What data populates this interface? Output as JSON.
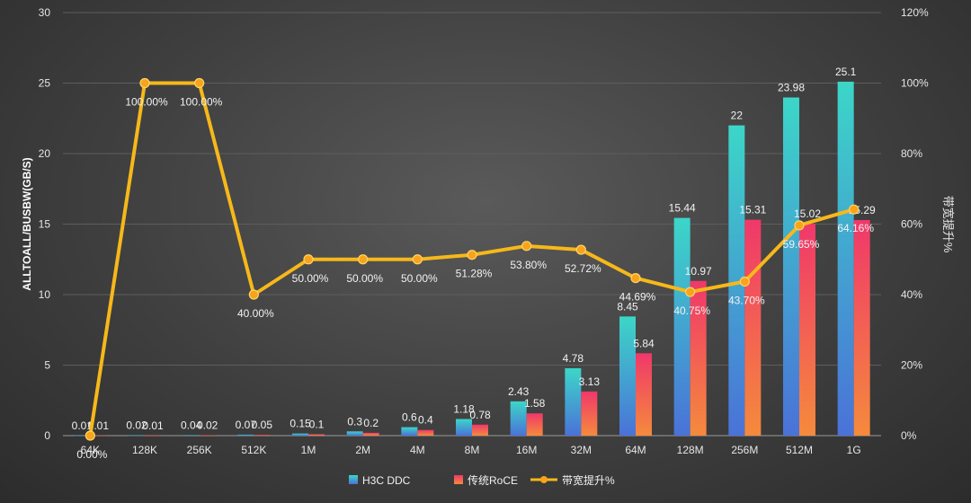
{
  "chart_data": {
    "type": "bar",
    "categories": [
      "64K",
      "128K",
      "256K",
      "512K",
      "1M",
      "2M",
      "4M",
      "8M",
      "16M",
      "32M",
      "64M",
      "128M",
      "256M",
      "512M",
      "1G"
    ],
    "series": [
      {
        "name": "H3C DDC",
        "type": "bar",
        "axis": "left",
        "values": [
          0.01,
          0.02,
          0.04,
          0.07,
          0.15,
          0.3,
          0.6,
          1.18,
          2.43,
          4.78,
          8.45,
          15.44,
          22,
          23.98,
          25.1
        ],
        "labels": [
          "0.01",
          "0.02",
          "0.04",
          "0.07",
          "0.15",
          "0.3",
          "0.6",
          "1.18",
          "2.43",
          "4.78",
          "8.45",
          "15.44",
          "22",
          "23.98",
          "25.1"
        ],
        "color_top": "#3cd6c8",
        "color_bottom": "#4a72d8"
      },
      {
        "name": "传统RoCE",
        "type": "bar",
        "axis": "left",
        "values": [
          0.01,
          0.01,
          0.02,
          0.05,
          0.1,
          0.2,
          0.4,
          0.78,
          1.58,
          3.13,
          5.84,
          10.97,
          15.31,
          15.02,
          15.29
        ],
        "labels": [
          "0.01",
          "0.01",
          "0.02",
          "0.05",
          "0.1",
          "0.2",
          "0.4",
          "0.78",
          "1.58",
          "3.13",
          "5.84",
          "10.97",
          "15.31",
          "15.02",
          "15.29"
        ],
        "color_top": "#f0386a",
        "color_bottom": "#f58a3c"
      },
      {
        "name": "带宽提升%",
        "type": "line",
        "axis": "right",
        "values": [
          0,
          100,
          100,
          40,
          50,
          50,
          50,
          51.28,
          53.8,
          52.72,
          44.69,
          40.75,
          43.7,
          59.65,
          64.16
        ],
        "labels": [
          "0.00%",
          "100.00%",
          "100.00%",
          "40.00%",
          "50.00%",
          "50.00%",
          "50.00%",
          "51.28%",
          "53.80%",
          "52.72%",
          "44.69%",
          "40.75%",
          "43.70%",
          "59.65%",
          "64.16%"
        ],
        "color": "#f6b81a"
      }
    ],
    "ylabel": "ALLTOALL/BUSBW(GB/S)",
    "ylabel_right": "带宽提升%",
    "ylim": [
      0,
      30
    ],
    "yticks": [
      "0",
      "5",
      "10",
      "15",
      "20",
      "25",
      "30"
    ],
    "ylim_right": [
      0,
      120
    ],
    "yticks_right": [
      "0%",
      "20%",
      "40%",
      "60%",
      "80%",
      "100%",
      "120%"
    ],
    "grid": true,
    "legend": "bottom"
  }
}
